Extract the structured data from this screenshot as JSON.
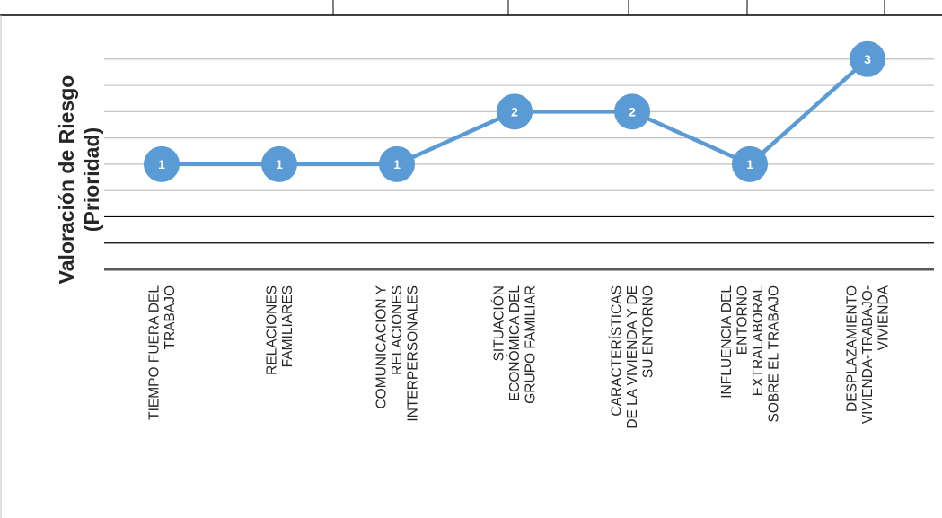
{
  "chart_data": {
    "type": "line",
    "title": "",
    "ylabel_lines": [
      "Valoración de Riesgo",
      "(Prioridad)"
    ],
    "xlabel": "",
    "categories": [
      [
        "TIEMPO FUERA DEL",
        "TRABAJO"
      ],
      [
        "RELACIONES",
        "FAMILIARES"
      ],
      [
        "COMUNICACIÓN Y",
        "RELACIONES",
        "INTERPERSONALES"
      ],
      [
        "SITUACIÓN",
        "ECONÓMICA DEL",
        "GRUPO FAMILIAR"
      ],
      [
        "CARACTERÍSTICAS",
        "DE LA VIVIENDA Y DE",
        "SU ENTORNO"
      ],
      [
        "INFLUENCIA DEL",
        "ENTORNO",
        "EXTRALABORAL",
        "SOBRE EL TRABAJO"
      ],
      [
        "DESPLAZAMIENTO",
        "VIVIENDA-TRABAJO-",
        "VIVIENDA"
      ]
    ],
    "values": [
      1,
      1,
      1,
      2,
      2,
      1,
      3
    ],
    "data_labels": [
      "1",
      "1",
      "1",
      "2",
      "2",
      "1",
      "3"
    ],
    "ylim": [
      -1,
      3.5
    ],
    "gridlines": [
      -0.5,
      0,
      0.5,
      1,
      1.5,
      2,
      2.5,
      3
    ],
    "grid": true,
    "series_color": "#5b9bd5",
    "grid_color_upper": "#bfbfbf",
    "grid_color_lower": "#000000",
    "axis_color": "#595959"
  }
}
